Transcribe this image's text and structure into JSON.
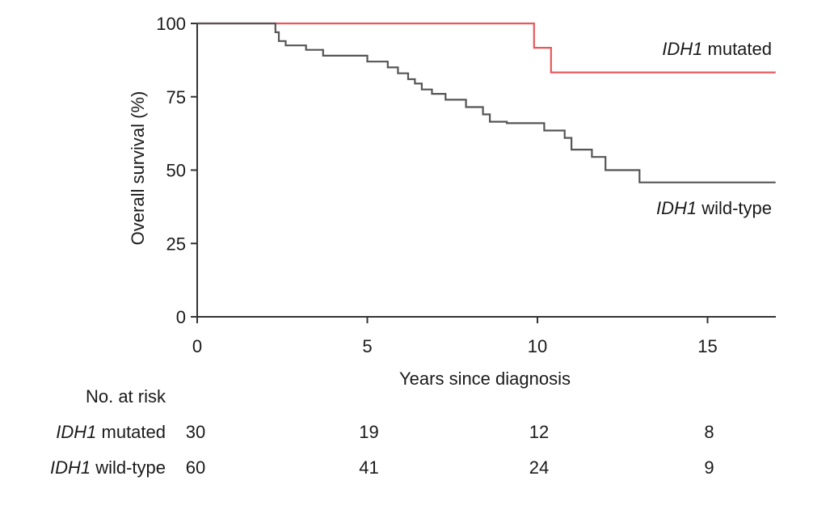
{
  "chart_data": {
    "type": "line",
    "subtype": "kaplan-meier step",
    "xlabel": "Years since diagnosis",
    "ylabel": "Overall survival (%)",
    "xlim": [
      0,
      17
    ],
    "ylim": [
      0,
      100
    ],
    "xticks": [
      "0",
      "5",
      "10",
      "15"
    ],
    "yticks": [
      "0",
      "25",
      "50",
      "75",
      "100"
    ],
    "grid": false,
    "legend": "inline labels at right",
    "series": [
      {
        "name_gene": "IDH1",
        "name_rest": " mutated",
        "color": "#e8585a",
        "x": [
          0,
          9.9,
          9.9,
          10.4,
          10.4,
          17
        ],
        "y": [
          100,
          100,
          91.7,
          91.7,
          83.3,
          83.3
        ]
      },
      {
        "name_gene": "IDH1",
        "name_rest": " wild-type",
        "color": "#555555",
        "x": [
          0,
          2.3,
          2.3,
          2.4,
          2.4,
          2.6,
          2.6,
          3.2,
          3.2,
          3.7,
          3.7,
          4.3,
          4.3,
          5.0,
          5.0,
          5.6,
          5.6,
          5.9,
          5.9,
          6.2,
          6.2,
          6.4,
          6.4,
          6.6,
          6.6,
          6.9,
          6.9,
          7.3,
          7.3,
          7.9,
          7.9,
          8.4,
          8.4,
          8.6,
          8.6,
          9.1,
          9.1,
          10.2,
          10.2,
          10.8,
          10.8,
          11.0,
          11.0,
          11.6,
          11.6,
          12.0,
          12.0,
          12.6,
          12.6,
          13.0,
          13.0,
          17
        ],
        "y": [
          100,
          100,
          97,
          97,
          94,
          94,
          92.5,
          92.5,
          91,
          91,
          89,
          89,
          89,
          89,
          87,
          87,
          85,
          85,
          83,
          83,
          81,
          81,
          79.5,
          79.5,
          77.5,
          77.5,
          76,
          76,
          74,
          74,
          71.5,
          71.5,
          69,
          69,
          66.5,
          66.5,
          66,
          66,
          63.5,
          63.5,
          61,
          61,
          57,
          57,
          54.5,
          54.5,
          50,
          50,
          50,
          50,
          45.8,
          45.8
        ]
      }
    ],
    "risk_table": {
      "title": "No. at risk",
      "times": [
        0,
        5,
        10,
        15
      ],
      "rows": [
        {
          "gene": "IDH1",
          "rest": " mutated",
          "values": [
            "30",
            "19",
            "12",
            "8"
          ]
        },
        {
          "gene": "IDH1",
          "rest": " wild-type",
          "values": [
            "60",
            "41",
            "24",
            "9"
          ]
        }
      ]
    }
  }
}
